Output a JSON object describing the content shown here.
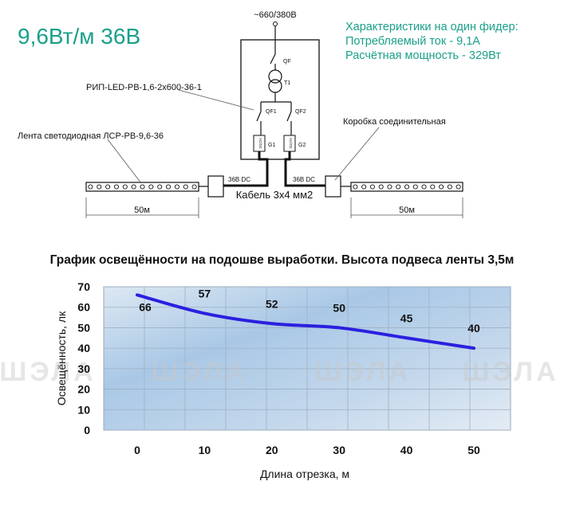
{
  "header": {
    "power_title": "9,6Вт/м 36В",
    "specs": [
      "Характеристики на один фидер:",
      "Потребляемый ток - 9,1А",
      "Расчётная мощность - 329Вт"
    ]
  },
  "diagram": {
    "supply": "~660/380В",
    "qf": "QF",
    "t1": "T1",
    "qf1": "QF1",
    "qf2": "QF2",
    "g1": "G1",
    "g2": "G2",
    "acdc": "AC/DC",
    "rip_label": "РИП-LED-РВ-1,6-2х600-36-1",
    "tape_label": "Лента светодиодная ЛСР-РВ-9,6-36",
    "box_label": "Коробка соединительная",
    "dc_left": "36В DC",
    "dc_right": "36В DC",
    "cable": "Кабель 3х4 мм2",
    "len_left": "50м",
    "len_right": "50м"
  },
  "watermark": "ШЭЛА",
  "chart_data": {
    "type": "line",
    "title": "График освещённости на подошве выработки. Высота подвеса ленты 3,5м",
    "xlabel": "Длина отрезка, м",
    "ylabel": "Освещённость, лк",
    "x_ticks": [
      "0",
      "10",
      "20",
      "30",
      "40",
      "50"
    ],
    "y_ticks": [
      "0",
      "10",
      "20",
      "30",
      "40",
      "50",
      "60",
      "70"
    ],
    "xlim": [
      0,
      50
    ],
    "ylim": [
      0,
      70
    ],
    "series": [
      {
        "x": [
          0,
          10,
          20,
          30,
          40,
          50
        ],
        "values": [
          66,
          57,
          52,
          50,
          45,
          40
        ]
      }
    ],
    "data_labels": [
      "66",
      "57",
      "52",
      "50",
      "45",
      "40"
    ],
    "line_color": "#2b1fe0",
    "grid": true
  }
}
